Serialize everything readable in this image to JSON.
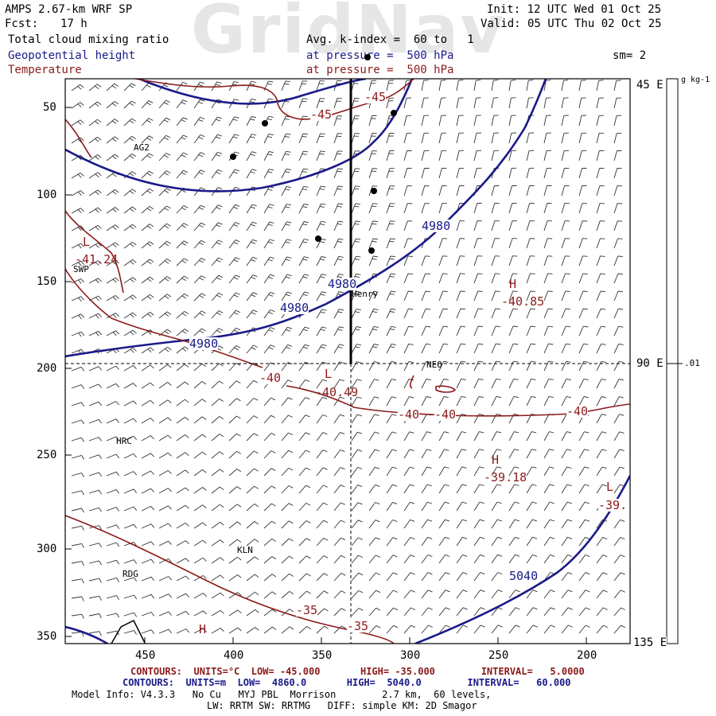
{
  "watermark": "GridNav",
  "header": {
    "model": "AMPS 2.67-km WRF SP",
    "fcst_label": "Fcst:",
    "fcst_value": "17 h",
    "init": "Init: 12 UTC Wed 01 Oct 25",
    "valid": "Valid: 05 UTC Thu 02 Oct 25",
    "field1": "Total cloud mixing ratio",
    "field2": "Geopotential height",
    "field3": "Temperature",
    "avg": "Avg. k-index =  60 to   1",
    "pressure1": "at pressure =  500 hPa",
    "pressure2": "at pressure =  500 hPa",
    "smoothing": "sm= 2"
  },
  "axes": {
    "y_ticks": [
      "50",
      "100",
      "150",
      "200",
      "250",
      "300",
      "350"
    ],
    "x_ticks": [
      "450",
      "400",
      "350",
      "300",
      "250",
      "200"
    ],
    "right_labels": [
      "45 E",
      "90 E",
      "135 E"
    ],
    "colorbar_unit": "g kg-1",
    "colorbar_value": ".01"
  },
  "stations": [
    {
      "name": "AG2",
      "x": 462,
      "y": 72
    },
    {
      "name": "SWP",
      "x": 495,
      "y": 142
    },
    {
      "name": "Henry",
      "x": 333,
      "y": 155
    },
    {
      "name": "NEO",
      "x": 293,
      "y": 197
    },
    {
      "name": "HRC",
      "x": 470,
      "y": 240
    },
    {
      "name": "KLN",
      "x": 400,
      "y": 300
    },
    {
      "name": "RDG",
      "x": 467,
      "y": 315
    }
  ],
  "contour_labels_height": [
    "4980",
    "4980",
    "4980",
    "4980",
    "5040"
  ],
  "contour_labels_temp": [
    "-45",
    "-45",
    "-41.24",
    "-40",
    "-40.49",
    "-40",
    "-40",
    "-40",
    "-40.85",
    "-39.18",
    "-39.",
    "-35",
    "-35"
  ],
  "extrema": {
    "L1": "L",
    "H1": "H",
    "L2": "L",
    "H2": "H",
    "L3": "L",
    "H3": "H"
  },
  "colors": {
    "height": "#1a1a8a",
    "temperature": "#8b1a1a",
    "wind": "#222222",
    "frame": "#000000"
  },
  "footer": {
    "temp_contours": "CONTOURS:  UNITS=°C  LOW= -45.000       HIGH= -35.000        INTERVAL=   5.0000",
    "height_contours": "CONTOURS:  UNITS=m  LOW=  4860.0       HIGH=  5040.0        INTERVAL=   60.000",
    "model_info": "Model Info: V4.3.3   No Cu   MYJ PBL  Morrison        2.7 km,  60 levels,",
    "physics": "LW: RRTM SW: RRTMG   DIFF: simple KM: 2D Smagor"
  }
}
